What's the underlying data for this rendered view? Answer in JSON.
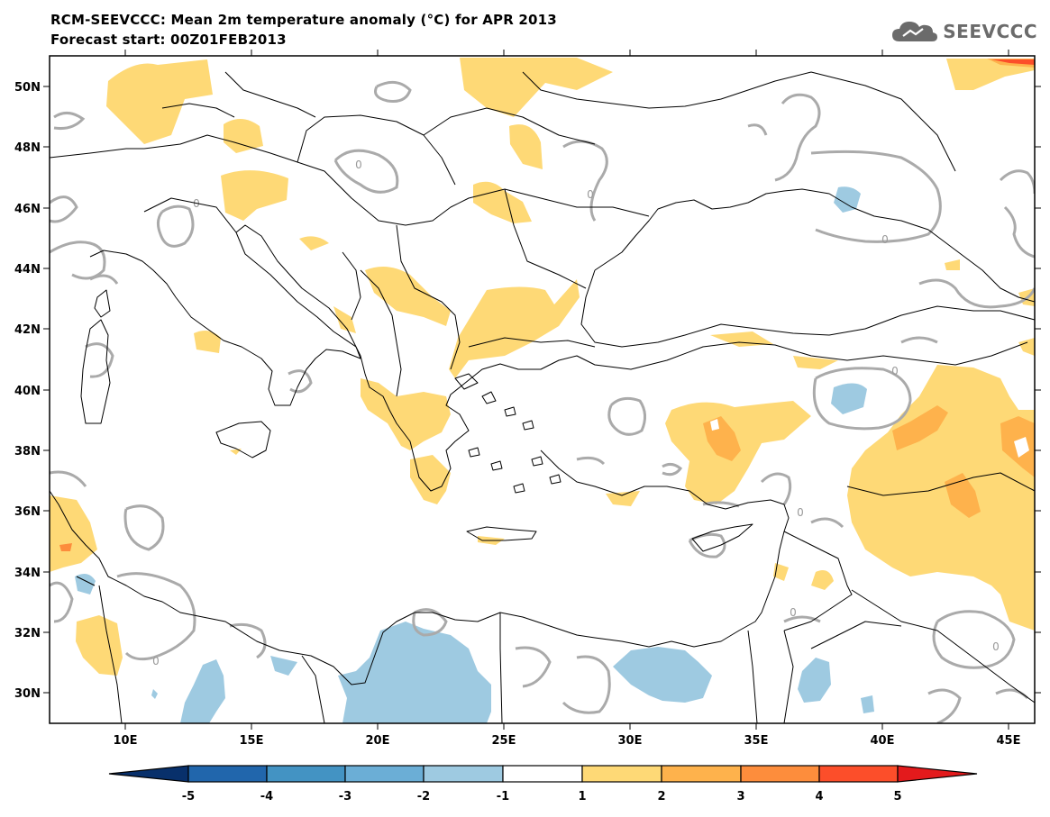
{
  "title": {
    "line1": "RCM-SEEVCCC: Mean 2m temperature anomaly (°C) for APR 2013",
    "line2": "Forecast start: 00Z01FEB2013"
  },
  "logo": {
    "text": "SEEVCCC",
    "icon": "cloud-icon"
  },
  "map": {
    "projection": "lat-lon",
    "lon_range": [
      7,
      46
    ],
    "lat_range": [
      29,
      51
    ],
    "lon_ticks": [
      "10E",
      "15E",
      "20E",
      "25E",
      "30E",
      "35E",
      "40E",
      "45E"
    ],
    "lat_ticks": [
      "50N",
      "48N",
      "46N",
      "44N",
      "42N",
      "40N",
      "38N",
      "36N",
      "34N",
      "32N",
      "30N"
    ],
    "contour_label": "0"
  },
  "colorbar": {
    "labels": [
      "-5",
      "-4",
      "-3",
      "-2",
      "-1",
      "1",
      "2",
      "3",
      "4",
      "5"
    ],
    "colors": [
      "#08306b",
      "#2166ac",
      "#4393c3",
      "#6baed6",
      "#9ecae1",
      "#ffffff",
      "#fed976",
      "#feb24c",
      "#fd8d3c",
      "#fc4e2a",
      "#e31a1c"
    ]
  }
}
